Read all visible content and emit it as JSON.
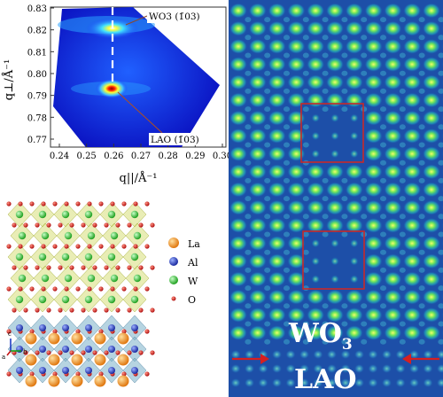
{
  "rsm": {
    "y_axis_label": "q⊥/Å⁻¹",
    "x_axis_label": "q||/Å⁻¹",
    "y_ticks": [
      "0.83",
      "0.82",
      "0.81",
      "0.80",
      "0.79",
      "0.78",
      "0.77"
    ],
    "x_ticks": [
      "0.24",
      "0.25",
      "0.26",
      "0.27",
      "0.28",
      "0.29",
      "0.30"
    ],
    "peak_top_label": "WO3 (1̄03)",
    "peak_bottom_label": "LAO (1̄03)",
    "peak_top_value": {
      "q_par": 0.265,
      "q_perp": 0.82
    },
    "peak_bottom_value": {
      "q_par": 0.263,
      "q_perp": 0.791
    }
  },
  "structure": {
    "legend": [
      {
        "label": "La",
        "color": "#f39a2a"
      },
      {
        "label": "Al",
        "color": "#2a4fd0"
      },
      {
        "label": "W",
        "color": "#3fcf3f"
      },
      {
        "label": "O",
        "color": "#d8281c"
      }
    ],
    "axes": {
      "c": "c",
      "a": "a",
      "b": "b"
    }
  },
  "stem": {
    "top_label": "WO",
    "top_label_sub": "3",
    "bottom_label": "LAO",
    "arrow_color": "#d62020",
    "box_color": "#c82828"
  }
}
